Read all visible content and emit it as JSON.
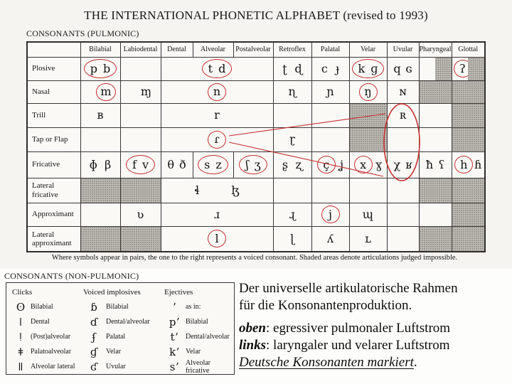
{
  "title": "THE INTERNATIONAL PHONETIC ALPHABET (revised to 1993)",
  "colors": {
    "annotation_red": "#c62f2f",
    "shade_gray": "#c1beb8"
  },
  "pulmonic": {
    "heading": "CONSONANTS (PULMONIC)",
    "columns": [
      "Bilabial",
      "Labiodental",
      "Dental",
      "Alveolar",
      "Postalveolar",
      "Retroflex",
      "Palatal",
      "Velar",
      "Uvular",
      "Pharyngeal",
      "Glottal"
    ],
    "rows": [
      {
        "label": "Plosive",
        "cells": [
          {
            "left": "p",
            "right": "b",
            "circle": "pair"
          },
          {},
          {
            "span": 3,
            "left": "t",
            "right": "d",
            "circle": "pair"
          },
          {
            "left": "ʈ",
            "right": "ɖ"
          },
          {
            "left": "c",
            "right": "ɟ"
          },
          {
            "left": "k",
            "right": "ɡ",
            "circle": "pair"
          },
          {
            "left": "q",
            "right": "ɢ"
          },
          {
            "shade": "right"
          },
          {
            "left": "ʔ",
            "circle": "left",
            "shade": "right"
          }
        ]
      },
      {
        "label": "Nasal",
        "cells": [
          {
            "single": "m",
            "circle": "single",
            "pos": "r"
          },
          {
            "single": "ɱ",
            "pos": "r"
          },
          {
            "span": 3,
            "single": "n",
            "circle": "single"
          },
          {
            "single": "ɳ"
          },
          {
            "single": "ɲ"
          },
          {
            "single": "ŋ",
            "circle": "single"
          },
          {
            "single": "ɴ"
          },
          {
            "shade": "full"
          },
          {
            "shade": "full"
          }
        ]
      },
      {
        "label": "Trill",
        "cells": [
          {
            "single": "ʙ"
          },
          {},
          {
            "span": 3,
            "single": "r"
          },
          {},
          {},
          {
            "shade": "full"
          },
          {
            "single": "ʀ"
          },
          {},
          {
            "shade": "full"
          }
        ]
      },
      {
        "label": "Tap or Flap",
        "cells": [
          {},
          {},
          {
            "span": 3,
            "single": "ɾ",
            "circle": "single"
          },
          {
            "single": "ɽ"
          },
          {},
          {
            "shade": "full"
          },
          {},
          {},
          {
            "shade": "full"
          }
        ]
      },
      {
        "label": "Fricative",
        "cells": [
          {
            "left": "ɸ",
            "right": "β"
          },
          {
            "left": "f",
            "right": "v",
            "circle": "pair"
          },
          {
            "left": "θ",
            "right": "ð"
          },
          {
            "left": "s",
            "right": "z",
            "circle": "pair"
          },
          {
            "left": "ʃ",
            "right": "ʒ",
            "circle": "pair"
          },
          {
            "left": "ʂ",
            "right": "ʐ"
          },
          {
            "left": "ç",
            "right": "ʝ",
            "circle": "left"
          },
          {
            "left": "x",
            "right": "ɣ",
            "circle": "left"
          },
          {
            "left": "χ",
            "right": "ʁ"
          },
          {
            "left": "ħ",
            "right": "ʕ"
          },
          {
            "left": "h",
            "right": "ɦ",
            "circle": "left"
          }
        ]
      },
      {
        "label": "Lateral fricative",
        "cells": [
          {
            "shade": "full"
          },
          {
            "shade": "full"
          },
          {
            "span": 3,
            "left": "ɬ",
            "right": "ɮ"
          },
          {},
          {},
          {},
          {},
          {
            "shade": "full"
          },
          {
            "shade": "full"
          }
        ]
      },
      {
        "label": "Approximant",
        "cells": [
          {},
          {
            "single": "ʋ"
          },
          {
            "span": 3,
            "single": "ɹ"
          },
          {
            "single": "ɻ"
          },
          {
            "single": "j",
            "circle": "single"
          },
          {
            "single": "ɰ"
          },
          {},
          {},
          {
            "shade": "full"
          }
        ]
      },
      {
        "label": "Lateral approximant",
        "cells": [
          {
            "shade": "full"
          },
          {
            "shade": "full"
          },
          {
            "span": 3,
            "single": "l",
            "circle": "single"
          },
          {
            "single": "ɭ"
          },
          {
            "single": "ʎ"
          },
          {
            "single": "ʟ"
          },
          {},
          {
            "shade": "full"
          },
          {
            "shade": "full"
          }
        ]
      }
    ],
    "footnote": "Where symbols appear in pairs, the one to the right represents a voiced consonant. Shaded areas denote articulations judged impossible."
  },
  "nonpulmonic": {
    "heading": "CONSONANTS (NON-PULMONIC)",
    "groups": [
      {
        "header": "Clicks",
        "items": [
          {
            "symbol": "ʘ",
            "label": "Bilabial"
          },
          {
            "symbol": "ǀ",
            "label": "Dental"
          },
          {
            "symbol": "ǃ",
            "label": "(Post)alveolar"
          },
          {
            "symbol": "ǂ",
            "label": "Palatoalveolar"
          },
          {
            "symbol": "ǁ",
            "label": "Alveolar lateral"
          }
        ]
      },
      {
        "header": "Voiced implosives",
        "items": [
          {
            "symbol": "ɓ",
            "label": "Bilabial"
          },
          {
            "symbol": "ɗ",
            "label": "Dental/alveolar"
          },
          {
            "symbol": "ʄ",
            "label": "Palatal"
          },
          {
            "symbol": "ɠ",
            "label": "Velar"
          },
          {
            "symbol": "ʛ",
            "label": "Uvular"
          }
        ]
      },
      {
        "header": "Ejectives",
        "items": [
          {
            "symbol": "ʼ",
            "label": "as in:"
          },
          {
            "symbol": "pʼ",
            "label": "Bilabial"
          },
          {
            "symbol": "tʼ",
            "label": "Dental/alveolar"
          },
          {
            "symbol": "kʼ",
            "label": "Velar"
          },
          {
            "symbol": "sʼ",
            "label": "Alveolar fricative"
          }
        ]
      }
    ]
  },
  "caption": {
    "line1": "Der universelle artikulatorische Rahmen",
    "line2": "für die Konsonantenproduktion.",
    "oben": {
      "label": "oben",
      "text": ": egressiver pulmonaler Luftstrom"
    },
    "links": {
      "label": "links",
      "text": ": laryngaler und velarer Luftstrom"
    },
    "marked": {
      "text": "Deutsche Konsonanten markiert",
      "suffix": "."
    }
  }
}
